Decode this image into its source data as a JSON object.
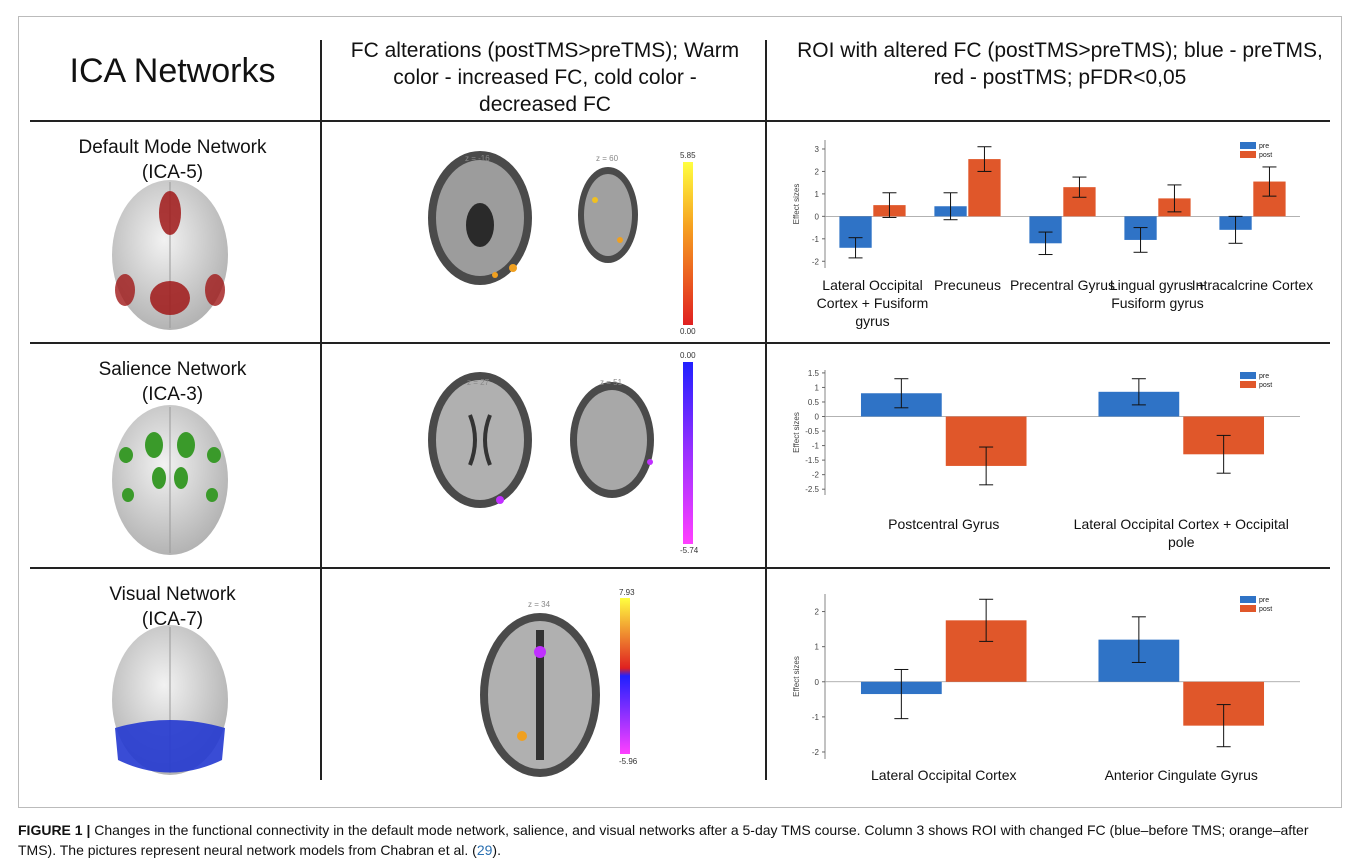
{
  "header": {
    "col1": "ICA Networks",
    "col2": "FC alterations (postTMS>preTMS); Warm color - increased FC, cold color - decreased FC",
    "col3": "ROI with altered FC (postTMS>preTMS); blue - preTMS, red - postTMS; pFDR<0,05"
  },
  "rows": [
    {
      "network": "Default Mode Network",
      "ica": "(ICA-5)",
      "slices": [
        "z = -16",
        "z = 60"
      ],
      "colorbar": [
        "5.85",
        "0.00"
      ]
    },
    {
      "network": "Salience Network",
      "ica": "(ICA-3)",
      "slices": [
        "z = 27",
        "z = 51"
      ],
      "colorbar": [
        "0.00",
        "-5.74"
      ]
    },
    {
      "network": "Visual Network",
      "ica": "(ICA-7)",
      "slices": [
        "z = 34"
      ],
      "colorbar": [
        "7.93",
        "-5.96"
      ]
    }
  ],
  "chart_data": [
    {
      "type": "bar",
      "y_label": "Effect sizes",
      "legend": "upper right",
      "grid": false,
      "categories": [
        "Lateral Occipital Cortex + Fusiform gyrus",
        "Precuneus",
        "Precentral Gyrus",
        "Lingual gyrus + Fusiform gyrus",
        "Intracalcrine Cortex"
      ],
      "series": [
        {
          "name": "pre",
          "color": "#2f73c6",
          "values": [
            -1.4,
            0.45,
            -1.2,
            -1.05,
            -0.6
          ],
          "errors": [
            0.45,
            0.6,
            0.5,
            0.55,
            0.6
          ]
        },
        {
          "name": "post",
          "color": "#e0572a",
          "values": [
            0.5,
            2.55,
            1.3,
            0.8,
            1.55
          ],
          "errors": [
            0.55,
            0.55,
            0.45,
            0.6,
            0.65
          ]
        }
      ],
      "ylim": [
        -2.3,
        3.4
      ],
      "yticks": [
        -2,
        -1,
        0,
        1,
        2,
        3
      ]
    },
    {
      "type": "bar",
      "y_label": "Effect sizes",
      "legend": "upper right",
      "grid": false,
      "categories": [
        "Postcentral Gyrus",
        "Lateral Occipital Cortex + Occipital pole"
      ],
      "series": [
        {
          "name": "pre",
          "color": "#2f73c6",
          "values": [
            0.8,
            0.85
          ],
          "errors": [
            0.5,
            0.45
          ]
        },
        {
          "name": "post",
          "color": "#e0572a",
          "values": [
            -1.7,
            -1.3
          ],
          "errors": [
            0.65,
            0.65
          ]
        }
      ],
      "ylim": [
        -2.7,
        1.6
      ],
      "yticks": [
        -2.5,
        -2,
        -1.5,
        -1,
        -0.5,
        0,
        0.5,
        1,
        1.5
      ]
    },
    {
      "type": "bar",
      "y_label": "Effect sizes",
      "legend": "upper right",
      "grid": false,
      "categories": [
        "Lateral Occipital Cortex",
        "Anterior Cingulate Gyrus"
      ],
      "series": [
        {
          "name": "pre",
          "color": "#2f73c6",
          "values": [
            -0.35,
            1.2
          ],
          "errors": [
            0.7,
            0.65
          ]
        },
        {
          "name": "post",
          "color": "#e0572a",
          "values": [
            1.75,
            -1.25
          ],
          "errors": [
            0.6,
            0.6
          ]
        }
      ],
      "ylim": [
        -2.2,
        2.5
      ],
      "yticks": [
        -2,
        -1,
        0,
        1,
        2
      ]
    }
  ],
  "caption": {
    "label": "FIGURE 1 |",
    "text": "Changes in the functional connectivity in the default mode network, salience, and visual networks after a 5-day TMS course. Column 3 shows ROI with changed FC (blue–before TMS; orange–after TMS). The pictures represent neural network models from Chabran et al. (",
    "ref": "29",
    "end": ")."
  }
}
